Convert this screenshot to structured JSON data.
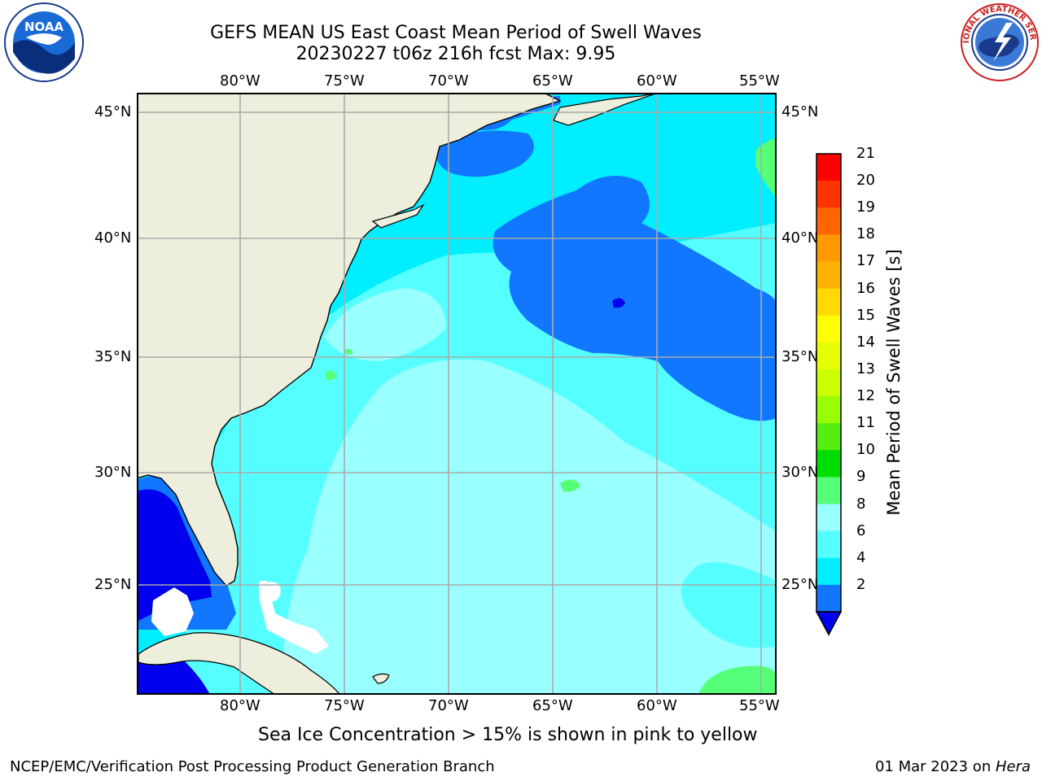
{
  "title": {
    "line1": "GEFS MEAN US East Coast Mean Period of Swell Waves",
    "line2": "20230227 t06z 216h fcst   Max: 9.95"
  },
  "logos": {
    "left": "noaa-logo",
    "left_text": "NOAA",
    "right": "nws-logo",
    "right_text": "NATIONAL WEATHER SERVICE"
  },
  "axes": {
    "lon_labels": [
      "80°W",
      "75°W",
      "70°W",
      "65°W",
      "60°W",
      "55°W"
    ],
    "lat_labels": [
      "45°N",
      "40°N",
      "35°N",
      "30°N",
      "25°N"
    ]
  },
  "colorbar": {
    "title": "Mean Period of Swell Waves [s]",
    "ticks": [
      "21",
      "20",
      "19",
      "18",
      "17",
      "16",
      "15",
      "14",
      "13",
      "12",
      "11",
      "10",
      "9",
      "8",
      "6",
      "4",
      "2"
    ],
    "colors": [
      "#ff0000",
      "#ff3300",
      "#ff6600",
      "#ff9900",
      "#ffb300",
      "#ffd900",
      "#ffff00",
      "#e6ff00",
      "#ccff00",
      "#99ff00",
      "#55ee11",
      "#00dd00",
      "#55ff77",
      "#99ffff",
      "#55ffff",
      "#00eeff",
      "#1177ff"
    ],
    "under_color": "#0000ee"
  },
  "legend_colors": {
    "land": "#eeeedd",
    "sea_ice_note": "pink to yellow"
  },
  "caption": "Sea Ice Concentration > 15% is shown in pink to yellow",
  "footer": {
    "left": "NCEP/EMC/Verification Post Processing Product Generation Branch",
    "date": "01 Mar 2023 on ",
    "host": "Hera"
  }
}
